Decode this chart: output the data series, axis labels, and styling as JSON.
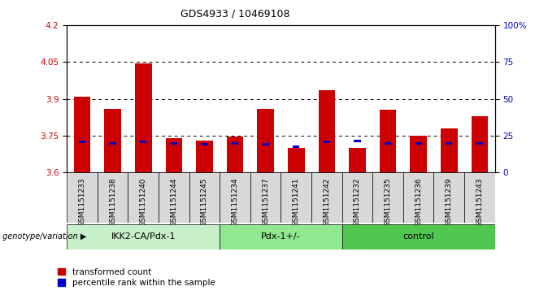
{
  "title": "GDS4933 / 10469108",
  "samples": [
    "GSM1151233",
    "GSM1151238",
    "GSM1151240",
    "GSM1151244",
    "GSM1151245",
    "GSM1151234",
    "GSM1151237",
    "GSM1151241",
    "GSM1151242",
    "GSM1151232",
    "GSM1151235",
    "GSM1151236",
    "GSM1151239",
    "GSM1151243"
  ],
  "groups": [
    {
      "label": "IKK2-CA/Pdx-1",
      "indices": [
        0,
        5
      ],
      "color": "#c8f0c8"
    },
    {
      "label": "Pdx-1+/-",
      "indices": [
        5,
        9
      ],
      "color": "#90e890"
    },
    {
      "label": "control",
      "indices": [
        9,
        14
      ],
      "color": "#50c850"
    }
  ],
  "red_values": [
    3.91,
    3.86,
    4.045,
    3.74,
    3.73,
    3.745,
    3.86,
    3.7,
    3.935,
    3.7,
    3.855,
    3.75,
    3.78,
    3.83
  ],
  "blue_values": [
    3.725,
    3.72,
    3.725,
    3.72,
    3.715,
    3.72,
    3.715,
    3.705,
    3.725,
    3.73,
    3.72,
    3.72,
    3.72,
    3.72
  ],
  "ymin": 3.6,
  "ymax": 4.2,
  "yticks_left": [
    3.6,
    3.75,
    3.9,
    4.05,
    4.2
  ],
  "yticks_right": [
    0,
    25,
    50,
    75,
    100
  ],
  "grid_lines": [
    3.75,
    3.9,
    4.05
  ],
  "bar_width": 0.55,
  "red_color": "#cc0000",
  "blue_color": "#0000cc",
  "legend_red": "transformed count",
  "legend_blue": "percentile rank within the sample",
  "genotype_label": "genotype/variation"
}
